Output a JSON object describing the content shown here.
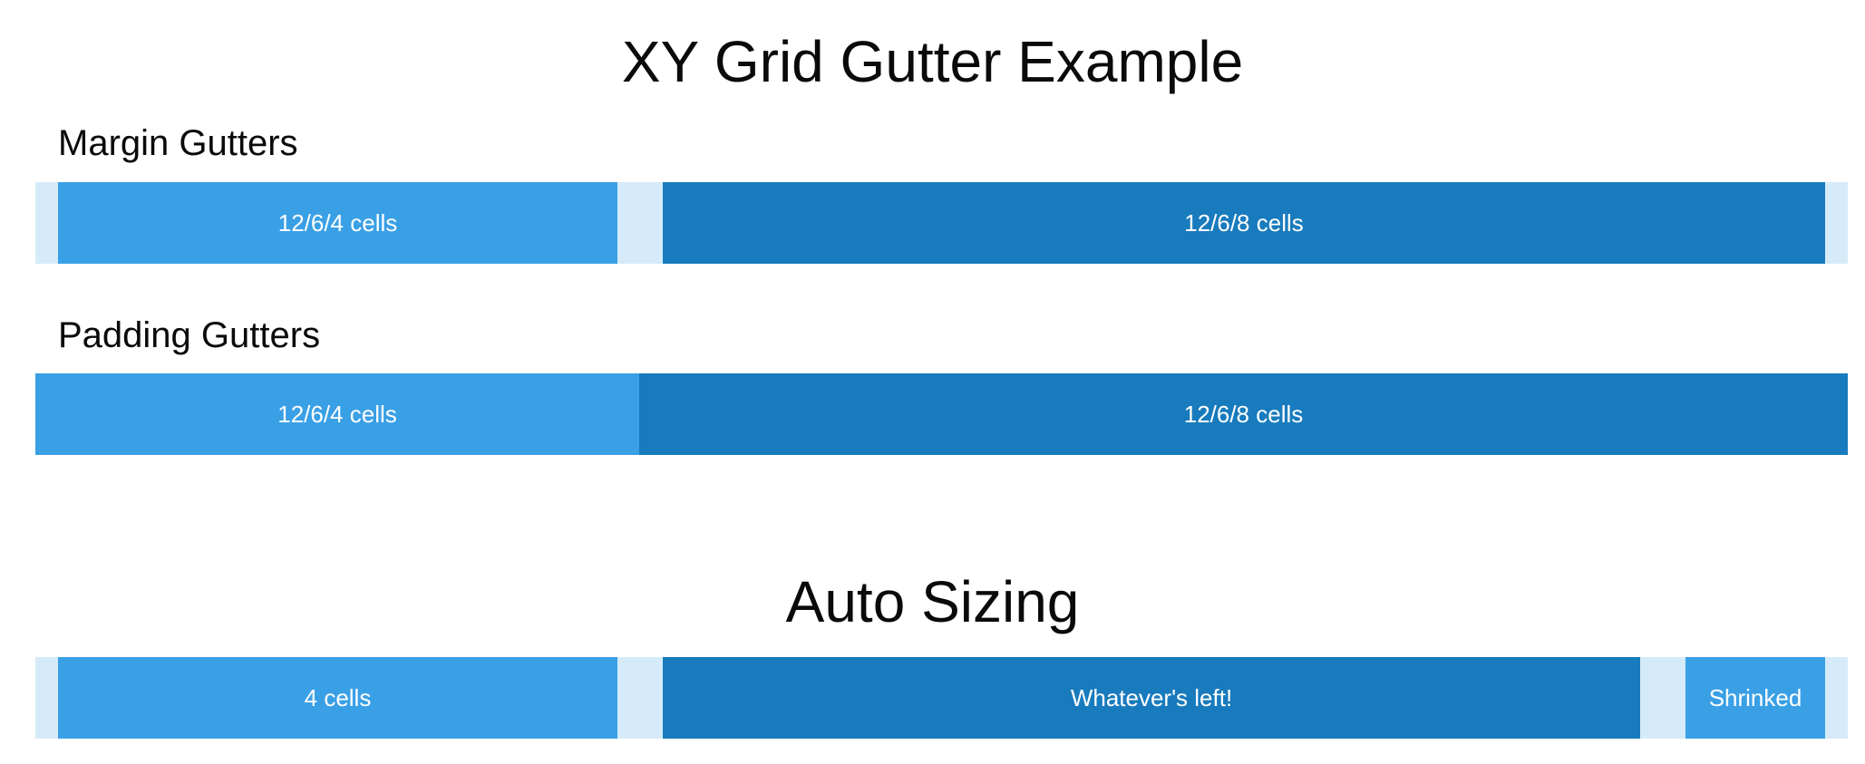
{
  "page": {
    "title": "XY Grid Gutter Example"
  },
  "margin_gutters": {
    "heading": "Margin Gutters",
    "cells": [
      {
        "label": "12/6/4 cells",
        "color": "#3aa0e6"
      },
      {
        "label": "12/6/8 cells",
        "color": "#187bbd"
      }
    ],
    "gutter_color": "#d6ebf9"
  },
  "padding_gutters": {
    "heading": "Padding Gutters",
    "cells": [
      {
        "label": "12/6/4 cells",
        "color": "#3aa0e6"
      },
      {
        "label": "12/6/8 cells",
        "color": "#187bbd"
      }
    ]
  },
  "auto_sizing": {
    "heading": "Auto Sizing",
    "cells": [
      {
        "label": "4 cells",
        "color": "#3aa0e6"
      },
      {
        "label": "Whatever's left!",
        "color": "#187bbd"
      },
      {
        "label": "Shrinked",
        "color": "#3aa0e6"
      }
    ]
  }
}
